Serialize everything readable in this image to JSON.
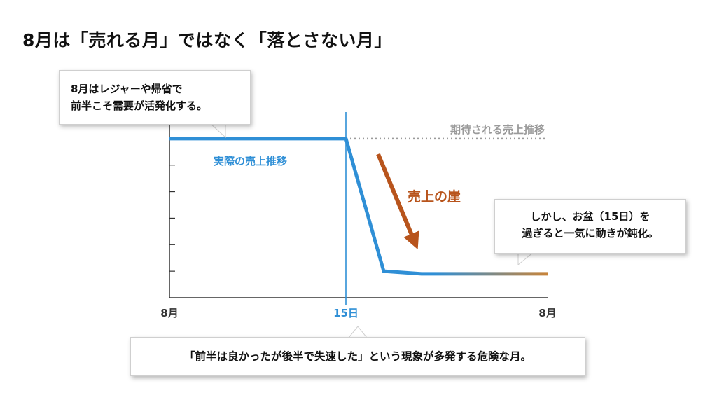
{
  "title": "8月は「売れる月」ではなく「落とさない月」",
  "callout_top": [
    "8月はレジャーや帰省で",
    "前半こそ需要が活発化する。"
  ],
  "callout_right": [
    "しかし、お盆（15日）を",
    "過ぎると一気に動きが鈍化。"
  ],
  "callout_bottom": "「前半は良かったが後半で失速した」という現象が多発する危険な月。",
  "colors": {
    "actual_line_start": "#2f8fd6",
    "actual_line_end": "#c8843a",
    "expected_line": "#9a9a9a",
    "cliff_arrow": "#b8541c",
    "midline": "#2f8fd6",
    "axis": "#333333"
  },
  "chart_data": {
    "type": "line",
    "x_tick_labels": [
      "8月",
      "15日",
      "8月"
    ],
    "series": [
      {
        "name": "実際の売上推移",
        "x": [
          1,
          15,
          18,
          21,
          31
        ],
        "y": [
          6,
          6,
          1,
          0.9,
          0.9
        ]
      },
      {
        "name": "期待される売上推移",
        "x": [
          15,
          31
        ],
        "y": [
          6,
          6
        ]
      }
    ],
    "xlim": [
      1,
      31
    ],
    "ylim": [
      0,
      7
    ],
    "annotations": [
      "売上の崖"
    ],
    "grid": false
  }
}
